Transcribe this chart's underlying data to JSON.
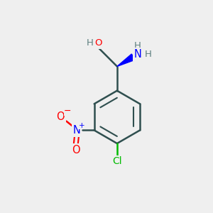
{
  "background_color": "#efefef",
  "atom_colors": {
    "C": "#2f4f4f",
    "N": "#0000ff",
    "O": "#ff0000",
    "Cl": "#00bb00",
    "H": "#5f8080"
  },
  "bond_color": "#2f4f4f",
  "figsize": [
    3.0,
    3.0
  ],
  "dpi": 100
}
